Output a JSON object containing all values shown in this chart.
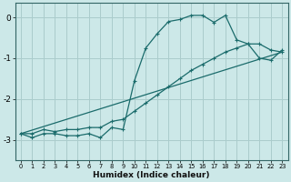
{
  "xlabel": "Humidex (Indice chaleur)",
  "bg_color": "#cce8e8",
  "grid_color": "#aacccc",
  "line_color": "#1a6b6b",
  "x_min": -0.5,
  "x_max": 23.5,
  "y_min": -3.5,
  "y_max": 0.35,
  "yticks": [
    0,
    -1,
    -2,
    -3
  ],
  "xticks": [
    0,
    1,
    2,
    3,
    4,
    5,
    6,
    7,
    8,
    9,
    10,
    11,
    12,
    13,
    14,
    15,
    16,
    17,
    18,
    19,
    20,
    21,
    22,
    23
  ],
  "curve1_x": [
    0,
    1,
    2,
    3,
    4,
    5,
    6,
    7,
    8,
    9,
    10,
    11,
    12,
    13,
    14,
    15,
    16,
    17,
    18,
    19,
    20,
    21,
    22,
    23
  ],
  "curve1_y": [
    -2.85,
    -2.95,
    -2.85,
    -2.85,
    -2.9,
    -2.9,
    -2.85,
    -2.95,
    -2.7,
    -2.75,
    -1.55,
    -0.75,
    -0.4,
    -0.1,
    -0.05,
    0.05,
    0.05,
    -0.12,
    0.05,
    -0.55,
    -0.65,
    -1.0,
    -1.05,
    -0.8
  ],
  "curve2_x": [
    0,
    1,
    2,
    3,
    4,
    5,
    6,
    7,
    8,
    9,
    10,
    11,
    12,
    13,
    14,
    15,
    16,
    17,
    18,
    19,
    20,
    21,
    22,
    23
  ],
  "curve2_y": [
    -2.85,
    -2.85,
    -2.75,
    -2.8,
    -2.75,
    -2.75,
    -2.7,
    -2.7,
    -2.55,
    -2.5,
    -2.3,
    -2.1,
    -1.9,
    -1.7,
    -1.5,
    -1.3,
    -1.15,
    -1.0,
    -0.85,
    -0.75,
    -0.65,
    -0.65,
    -0.8,
    -0.85
  ],
  "curve3_x": [
    0,
    23
  ],
  "curve3_y": [
    -2.85,
    -0.85
  ],
  "xlabel_fontsize": 6.5,
  "xlabel_fontweight": "bold",
  "ytick_fontsize": 6.5,
  "xtick_fontsize": 4.8
}
